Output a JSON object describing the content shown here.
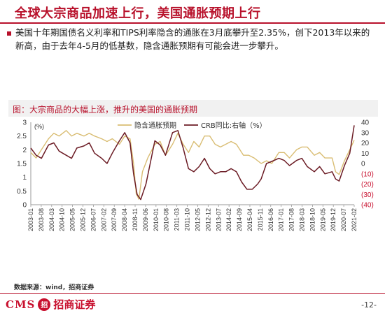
{
  "title": "全球大宗商品加速上行，美国通胀预期上行",
  "paragraph": "美国十年期国债名义利率和TIPS利率隐含的通胀在3月底攀升至2.35%，创下2013年以来的新高，由于去年4-5月的低基数，隐含通胀预期有可能会进一步攀升。",
  "caption": "图：大宗商品的大幅上涨，推升的美国的通胀预期",
  "source": "数据来源：wind，招商证券",
  "footer": {
    "logo_en": "CMS",
    "logo_mark": "招",
    "logo_cn": "招商证券",
    "page": "-12-"
  },
  "colors": {
    "accent": "#b8112b",
    "inflation": "#d9bd73",
    "crb": "#6b1b24"
  },
  "chart_data": {
    "type": "line",
    "title": "",
    "left_axis": {
      "unit_label": "(%)",
      "ylim": [
        0,
        3
      ],
      "ticks": [
        "0",
        "0.5",
        "1",
        "1.5",
        "2",
        "2.5",
        "3"
      ]
    },
    "right_axis": {
      "ylim": [
        -40,
        40
      ],
      "ticks": [
        "(40)",
        "(30)",
        "(20)",
        "(10)",
        "0",
        "10",
        "20",
        "30",
        "40"
      ]
    },
    "x_ticks": [
      "2003-01",
      "2003-08",
      "2004-03",
      "2004-10",
      "2005-05",
      "2005-12",
      "2006-07",
      "2007-02",
      "2007-09",
      "2008-04",
      "2008-11",
      "2009-06",
      "2010-01",
      "2010-08",
      "2011-03",
      "2011-10",
      "2012-05",
      "2012-12",
      "2013-07",
      "2014-02",
      "2014-09",
      "2015-04",
      "2015-11",
      "2016-06",
      "2017-01",
      "2017-08",
      "2018-03",
      "2018-10",
      "2019-05",
      "2019-12",
      "2020-07",
      "2021-02"
    ],
    "legend": [
      "隐含通胀预期",
      "CRB同比:右轴（%）"
    ],
    "legend_position": "top",
    "grid": false,
    "series": [
      {
        "name": "隐含通胀预期",
        "axis": "left",
        "color": "#d9bd73",
        "x": [
          2003.0,
          2003.3,
          2003.6,
          2004.0,
          2004.3,
          2004.6,
          2005.0,
          2005.3,
          2005.6,
          2006.0,
          2006.3,
          2006.6,
          2007.0,
          2007.3,
          2007.6,
          2008.0,
          2008.3,
          2008.6,
          2008.8,
          2008.95,
          2009.1,
          2009.3,
          2009.6,
          2010.0,
          2010.3,
          2010.6,
          2011.0,
          2011.3,
          2011.6,
          2011.9,
          2012.2,
          2012.5,
          2012.8,
          2013.1,
          2013.4,
          2013.7,
          2014.0,
          2014.3,
          2014.6,
          2015.0,
          2015.3,
          2015.6,
          2016.0,
          2016.3,
          2016.6,
          2017.0,
          2017.3,
          2017.6,
          2018.0,
          2018.3,
          2018.6,
          2019.0,
          2019.3,
          2019.6,
          2020.0,
          2020.2,
          2020.4,
          2020.7,
          2021.0,
          2021.25
        ],
        "values": [
          1.9,
          1.7,
          2.0,
          2.4,
          2.6,
          2.5,
          2.7,
          2.5,
          2.6,
          2.5,
          2.6,
          2.5,
          2.4,
          2.3,
          2.4,
          2.2,
          2.5,
          2.4,
          1.5,
          0.4,
          0.2,
          1.2,
          1.7,
          2.2,
          2.3,
          1.8,
          2.2,
          2.6,
          2.2,
          1.9,
          2.3,
          2.1,
          2.5,
          2.5,
          2.2,
          2.1,
          2.2,
          2.3,
          2.2,
          1.8,
          1.8,
          1.7,
          1.5,
          1.6,
          1.5,
          1.9,
          1.9,
          1.7,
          2.0,
          2.1,
          2.1,
          1.8,
          1.9,
          1.7,
          1.7,
          1.2,
          1.1,
          1.6,
          2.0,
          2.35
        ]
      },
      {
        "name": "CRB同比:右轴（%）",
        "axis": "right",
        "color": "#6b1b24",
        "x": [
          2003.0,
          2003.3,
          2003.6,
          2004.0,
          2004.3,
          2004.6,
          2005.0,
          2005.3,
          2005.6,
          2006.0,
          2006.3,
          2006.6,
          2007.0,
          2007.3,
          2007.6,
          2008.0,
          2008.3,
          2008.6,
          2008.8,
          2009.0,
          2009.2,
          2009.5,
          2009.8,
          2010.0,
          2010.3,
          2010.6,
          2011.0,
          2011.3,
          2011.6,
          2011.9,
          2012.2,
          2012.5,
          2012.8,
          2013.1,
          2013.4,
          2013.7,
          2014.0,
          2014.3,
          2014.6,
          2014.9,
          2015.2,
          2015.5,
          2015.8,
          2016.0,
          2016.3,
          2016.6,
          2017.0,
          2017.3,
          2017.6,
          2018.0,
          2018.3,
          2018.6,
          2019.0,
          2019.3,
          2019.6,
          2020.0,
          2020.2,
          2020.4,
          2020.7,
          2021.0,
          2021.25
        ],
        "values": [
          15,
          8,
          5,
          18,
          20,
          12,
          8,
          5,
          15,
          17,
          20,
          10,
          5,
          0,
          10,
          22,
          30,
          20,
          -10,
          -30,
          -35,
          -20,
          5,
          22,
          18,
          8,
          30,
          32,
          15,
          -5,
          -8,
          -3,
          5,
          -5,
          -10,
          -8,
          -8,
          -5,
          -8,
          -18,
          -25,
          -25,
          -20,
          -15,
          0,
          2,
          5,
          3,
          -2,
          3,
          5,
          -3,
          -8,
          -3,
          -10,
          -8,
          -15,
          -17,
          -2,
          10,
          37
        ]
      }
    ]
  }
}
